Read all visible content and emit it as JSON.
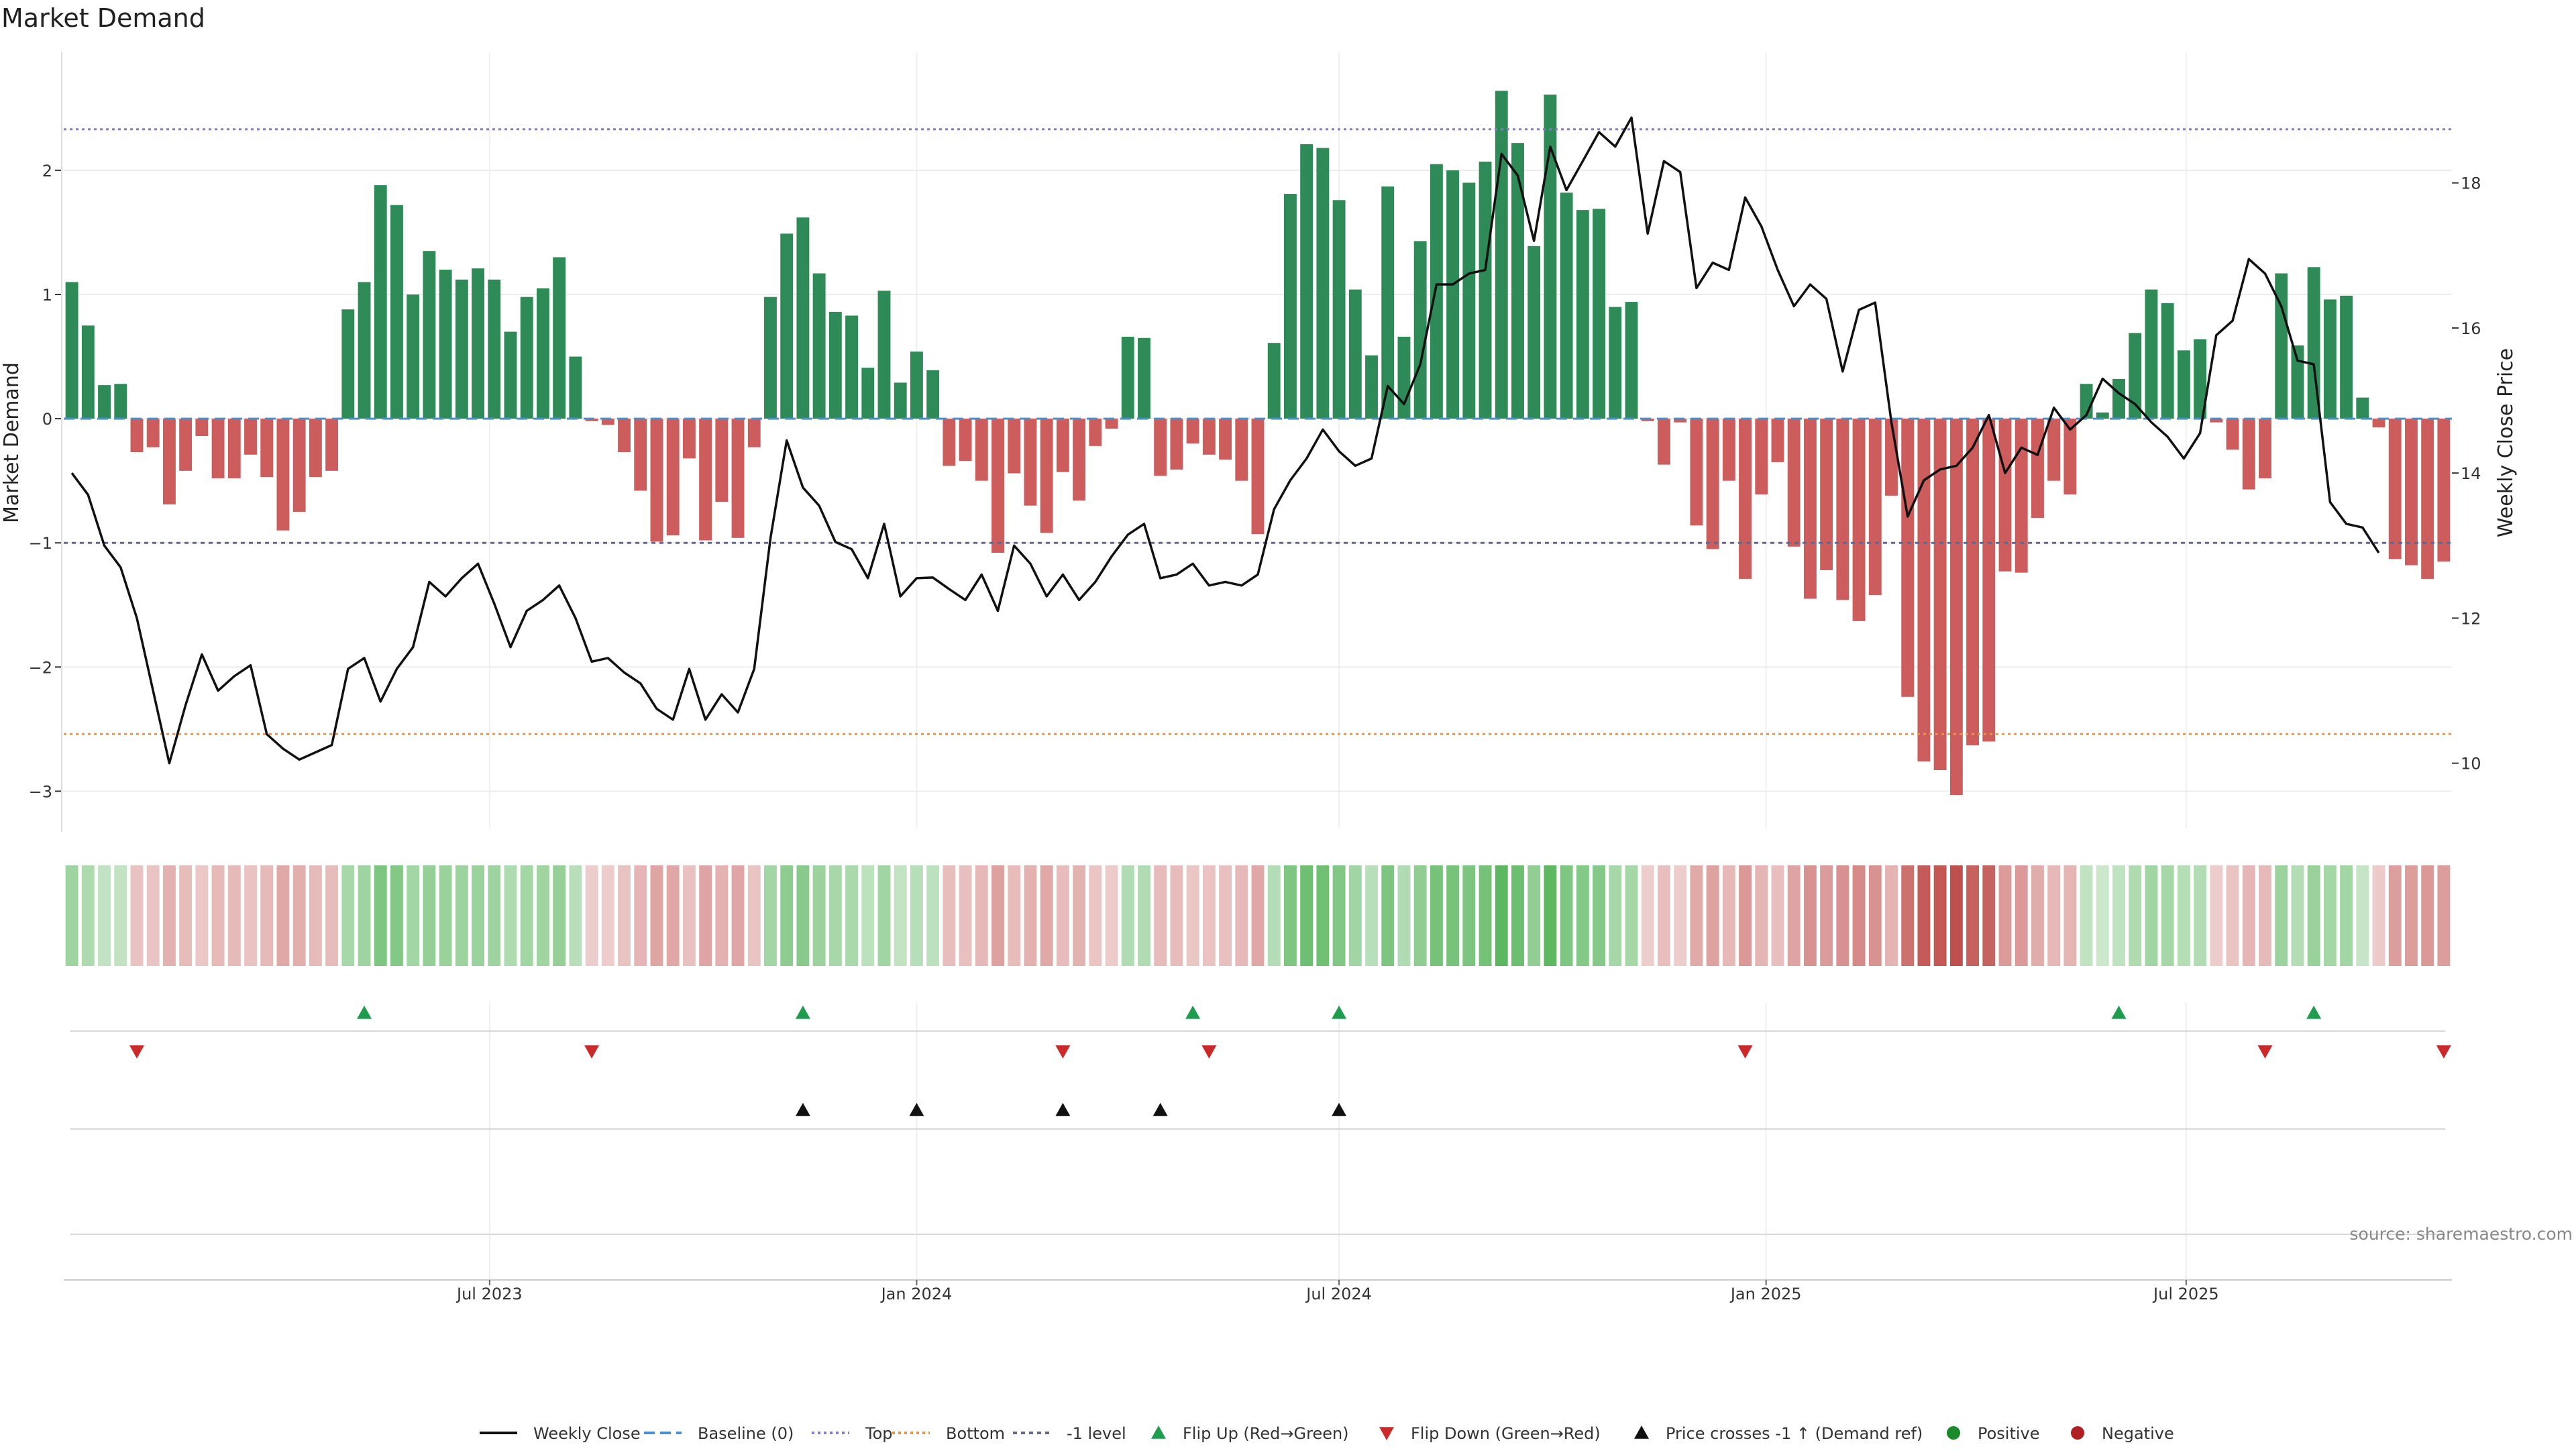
{
  "chart_data": {
    "type": "bar",
    "title": "Market Demand",
    "ylabel_left": "Market Demand",
    "ylabel_right": "Weekly Close Price",
    "source": "source: sharemaestro.com",
    "week_dates": [
      "2023-01-02",
      "2023-01-09",
      "2023-01-16",
      "2023-01-23",
      "2023-01-30",
      "2023-02-06",
      "2023-02-13",
      "2023-02-20",
      "2023-02-27",
      "2023-03-06",
      "2023-03-13",
      "2023-03-20",
      "2023-03-27",
      "2023-04-03",
      "2023-04-10",
      "2023-04-17",
      "2023-04-24",
      "2023-05-01",
      "2023-05-08",
      "2023-05-15",
      "2023-05-22",
      "2023-05-29",
      "2023-06-05",
      "2023-06-12",
      "2023-06-19",
      "2023-06-26",
      "2023-07-03",
      "2023-07-10",
      "2023-07-17",
      "2023-07-24",
      "2023-07-31",
      "2023-08-07",
      "2023-08-14",
      "2023-08-21",
      "2023-08-28",
      "2023-09-04",
      "2023-09-11",
      "2023-09-18",
      "2023-09-25",
      "2023-10-02",
      "2023-10-09",
      "2023-10-16",
      "2023-10-23",
      "2023-10-30",
      "2023-11-06",
      "2023-11-13",
      "2023-11-20",
      "2023-11-27",
      "2023-12-04",
      "2023-12-11",
      "2023-12-18",
      "2023-12-25",
      "2024-01-01",
      "2024-01-08",
      "2024-01-15",
      "2024-01-22",
      "2024-01-29",
      "2024-02-05",
      "2024-02-12",
      "2024-02-19",
      "2024-02-26",
      "2024-03-04",
      "2024-03-11",
      "2024-03-18",
      "2024-03-25",
      "2024-04-01",
      "2024-04-08",
      "2024-04-15",
      "2024-04-22",
      "2024-04-29",
      "2024-05-06",
      "2024-05-13",
      "2024-05-20",
      "2024-05-27",
      "2024-06-03",
      "2024-06-10",
      "2024-06-17",
      "2024-06-24",
      "2024-07-01",
      "2024-07-08",
      "2024-07-15",
      "2024-07-22",
      "2024-07-29",
      "2024-08-05",
      "2024-08-12",
      "2024-08-19",
      "2024-08-26",
      "2024-09-02",
      "2024-09-09",
      "2024-09-16",
      "2024-09-23",
      "2024-09-30",
      "2024-10-07",
      "2024-10-14",
      "2024-10-21",
      "2024-10-28",
      "2024-11-04",
      "2024-11-11",
      "2024-11-18",
      "2024-11-25",
      "2024-12-02",
      "2024-12-09",
      "2024-12-16",
      "2024-12-23",
      "2024-12-30",
      "2025-01-06",
      "2025-01-13",
      "2025-01-20",
      "2025-01-27",
      "2025-02-03",
      "2025-02-10",
      "2025-02-17",
      "2025-02-24",
      "2025-03-03",
      "2025-03-10",
      "2025-03-17",
      "2025-03-24",
      "2025-03-31",
      "2025-04-07",
      "2025-04-14",
      "2025-04-21",
      "2025-04-28",
      "2025-05-05",
      "2025-05-12",
      "2025-05-19",
      "2025-05-26",
      "2025-06-02",
      "2025-06-09",
      "2025-06-16",
      "2025-06-23",
      "2025-06-30",
      "2025-07-07",
      "2025-07-14",
      "2025-07-21",
      "2025-07-28",
      "2025-08-04",
      "2025-08-11",
      "2025-08-18",
      "2025-08-25",
      "2025-09-01",
      "2025-09-08",
      "2025-09-15",
      "2025-09-22",
      "2025-09-29",
      "2025-10-06",
      "2025-10-13",
      "2025-10-20",
      "2025-10-27"
    ],
    "series": [
      {
        "name": "Market Demand",
        "values": [
          1.1,
          0.75,
          0.27,
          0.28,
          -0.27,
          -0.23,
          -0.69,
          -0.42,
          -0.14,
          -0.48,
          -0.48,
          -0.29,
          -0.47,
          -0.9,
          -0.75,
          -0.47,
          -0.42,
          0.88,
          1.1,
          1.88,
          1.72,
          1.0,
          1.35,
          1.2,
          1.12,
          1.21,
          1.12,
          0.7,
          0.98,
          1.05,
          1.3,
          0.5,
          -0.02,
          -0.05,
          -0.27,
          -0.58,
          -0.99,
          -0.94,
          -0.32,
          -0.98,
          -0.67,
          -0.96,
          -0.23,
          0.98,
          1.49,
          1.62,
          1.17,
          0.86,
          0.83,
          0.41,
          1.03,
          0.29,
          0.54,
          0.39,
          -0.38,
          -0.34,
          -0.5,
          -1.08,
          -0.44,
          -0.7,
          -0.92,
          -0.43,
          -0.66,
          -0.22,
          -0.08,
          0.66,
          0.65,
          -0.46,
          -0.41,
          -0.2,
          -0.29,
          -0.33,
          -0.5,
          -0.93,
          0.61,
          1.81,
          2.21,
          2.18,
          1.76,
          1.04,
          0.51,
          1.87,
          0.66,
          1.43,
          2.05,
          2.0,
          1.9,
          2.07,
          2.64,
          2.22,
          1.39,
          2.61,
          1.82,
          1.68,
          1.69,
          0.9,
          0.94,
          -0.02,
          -0.37,
          -0.03,
          -0.86,
          -1.05,
          -0.5,
          -1.29,
          -0.61,
          -0.35,
          -1.03,
          -1.45,
          -1.22,
          -1.46,
          -1.63,
          -1.42,
          -0.62,
          -2.24,
          -2.76,
          -2.83,
          -3.03,
          -2.63,
          -2.6,
          -1.23,
          -1.24,
          -0.8,
          -0.5,
          -0.61,
          0.28,
          0.05,
          0.32,
          0.69,
          1.04,
          0.93,
          0.55,
          0.64,
          -0.03,
          -0.25,
          -0.57,
          -0.48,
          1.17,
          0.59,
          1.22,
          0.96,
          0.99,
          0.17,
          -0.07,
          -1.13,
          -1.18,
          -1.29,
          -1.15
        ]
      },
      {
        "name": "Weekly Close",
        "values": [
          14.0,
          13.7,
          13.0,
          12.7,
          12.0,
          11.0,
          10.0,
          10.8,
          11.5,
          11.0,
          11.2,
          11.35,
          10.4,
          10.2,
          10.05,
          10.15,
          10.25,
          11.3,
          11.45,
          10.85,
          11.3,
          11.6,
          12.5,
          12.3,
          12.55,
          12.75,
          12.2,
          11.6,
          12.1,
          12.25,
          12.45,
          12.0,
          11.4,
          11.45,
          11.25,
          11.1,
          10.75,
          10.6,
          11.3,
          10.6,
          10.95,
          10.7,
          11.3,
          13.1,
          14.45,
          13.8,
          13.55,
          13.05,
          12.95,
          12.55,
          13.3,
          12.3,
          12.55,
          12.56,
          12.4,
          12.25,
          12.6,
          12.1,
          13.0,
          12.75,
          12.3,
          12.6,
          12.25,
          12.5,
          12.85,
          13.15,
          13.3,
          12.55,
          12.6,
          12.75,
          12.45,
          12.5,
          12.45,
          12.6,
          13.5,
          13.9,
          14.2,
          14.6,
          14.3,
          14.1,
          14.2,
          15.2,
          14.95,
          15.5,
          16.6,
          16.6,
          16.75,
          16.8,
          18.4,
          18.1,
          17.2,
          18.5,
          17.9,
          18.3,
          18.7,
          18.5,
          18.9,
          17.3,
          18.3,
          18.15,
          16.55,
          16.9,
          16.8,
          17.8,
          17.4,
          16.8,
          16.3,
          16.6,
          16.4,
          15.4,
          16.25,
          16.35,
          14.7,
          13.4,
          13.9,
          14.05,
          14.1,
          14.35,
          14.8,
          14.0,
          14.35,
          14.25,
          14.9,
          14.6,
          14.8,
          15.3,
          15.1,
          14.95,
          14.7,
          14.5,
          14.2,
          14.55,
          15.9,
          16.1,
          16.95,
          16.75,
          16.3,
          15.55,
          15.5,
          13.6,
          13.3,
          13.25,
          12.9
        ]
      }
    ],
    "levels": {
      "baseline": 0,
      "top": 2.33,
      "bottom": -2.54,
      "minus_one": -1
    },
    "ylim_left": [
      -3.3,
      2.95
    ],
    "ylim_right": [
      9.1,
      19.8
    ],
    "yticks_left": [
      2,
      1,
      0,
      -1,
      -2,
      -3
    ],
    "ytick_labels_left": [
      "2",
      "1",
      "0",
      "−1",
      "−2",
      "−3"
    ],
    "yticks_right": [
      18,
      16,
      14,
      12,
      10
    ],
    "ytick_labels_right": [
      "18",
      "16",
      "14",
      "12",
      "10"
    ],
    "x_ticks": [
      {
        "date": "2023-07-01",
        "label": "Jul 2023"
      },
      {
        "date": "2024-01-01",
        "label": "Jan 2024"
      },
      {
        "date": "2024-07-01",
        "label": "Jul 2024"
      },
      {
        "date": "2025-01-01",
        "label": "Jan 2025"
      },
      {
        "date": "2025-07-01",
        "label": "Jul 2025"
      }
    ],
    "flip_up_dates": [
      "2023-05-08",
      "2023-11-13",
      "2024-04-29",
      "2024-07-01",
      "2025-06-02",
      "2025-08-25"
    ],
    "flip_down_dates": [
      "2023-01-30",
      "2023-08-14",
      "2024-03-04",
      "2024-05-06",
      "2024-12-23",
      "2025-08-04",
      "2025-10-20"
    ],
    "price_cross_dates": [
      "2023-11-13",
      "2024-01-01",
      "2024-03-04",
      "2024-04-15",
      "2024-07-01"
    ],
    "grid": true,
    "legend_position": "bottom-center",
    "legend": [
      "Weekly Close",
      "Baseline (0)",
      "Top",
      "Bottom",
      "-1 level",
      "Flip Up (Red→Green)",
      "Flip Down (Green→Red)",
      "Price crosses -1 ↑ (Demand ref)",
      "Positive",
      "Negative"
    ],
    "colors": {
      "positive": "#2e8b57",
      "negative": "#cd5c5c",
      "price": "#111111",
      "baseline": "#4a8fcf",
      "top": "#8a79c9",
      "bottom": "#e8954a",
      "minus_one": "#666688",
      "flip_up": "#1f9d4f",
      "flip_down": "#cc2a2a",
      "cross": "#111111",
      "positive_dot": "#1a8a2a",
      "negative_dot": "#b02020"
    }
  }
}
